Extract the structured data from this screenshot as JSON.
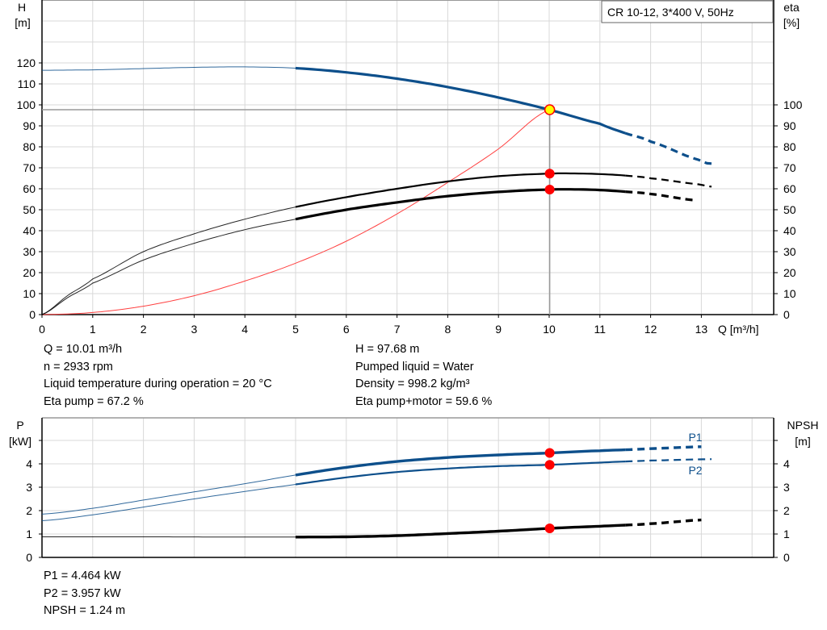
{
  "title_box": "CR 10-12, 3*400 V, 50Hz",
  "colors": {
    "head": "#0d4f8b",
    "power": "#0d4f8b",
    "efficiency": "#000000",
    "npsh": "#000000",
    "system_curve": "#ff4040",
    "duty_point": "#ff0000",
    "duty_point_head_fill": "#ffff00",
    "grid": "#d8d8d8"
  },
  "info_left": [
    "Q = 10.01 m³/h",
    "n = 2933 rpm",
    "Liquid temperature during operation = 20 °C",
    "Eta pump = 67.2 %"
  ],
  "info_right": [
    "H = 97.68 m",
    "Pumped liquid = Water",
    "Density = 998.2 kg/m³",
    "Eta pump+motor = 59.6 %"
  ],
  "info_bottom": [
    "P1 = 4.464 kW",
    "P2 = 3.957 kW",
    "NPSH = 1.24 m"
  ],
  "chart_data": [
    {
      "type": "line",
      "xlabel": "Q [m³/h]",
      "ylabel_left": [
        "H",
        "[m]"
      ],
      "ylabel_right": [
        "eta",
        "[%]"
      ],
      "xlim": [
        0,
        14.4
      ],
      "ylim_left": [
        0,
        150
      ],
      "ylim_right": [
        0,
        150
      ],
      "xticks": [
        0,
        1,
        2,
        3,
        4,
        5,
        6,
        7,
        8,
        9,
        10,
        11,
        12,
        13
      ],
      "yticks_left": [
        0,
        10,
        20,
        30,
        40,
        50,
        60,
        70,
        80,
        90,
        100,
        110,
        120
      ],
      "yticks_right": [
        0,
        10,
        20,
        30,
        40,
        50,
        60,
        70,
        80,
        90,
        100
      ],
      "grid": true,
      "duty_point": {
        "Q": 10.01,
        "H": 97.68,
        "eta_pump": 67.2,
        "eta_pump_motor": 59.6
      },
      "series": [
        {
          "key": "head",
          "axis": "left",
          "x": [
            0,
            1,
            2,
            3,
            4,
            5,
            6,
            7,
            8,
            9,
            10,
            11,
            11.5,
            12,
            13,
            13.2
          ],
          "y": [
            116.5,
            116.7,
            117.3,
            117.9,
            118.1,
            117.5,
            115.5,
            112.5,
            108.5,
            103.5,
            97.7,
            91,
            86.5,
            82.5,
            73.5,
            72
          ]
        },
        {
          "key": "eta_pump",
          "axis": "right",
          "x": [
            0,
            0.5,
            1,
            2,
            3,
            4,
            5,
            6,
            7,
            8,
            9,
            10,
            10.5,
            11,
            11.5,
            12,
            13,
            13.2
          ],
          "y": [
            0,
            9,
            17,
            30,
            38.5,
            45.5,
            51.3,
            56,
            60,
            63.5,
            66,
            67.2,
            67.3,
            67,
            66.3,
            65,
            62,
            61
          ]
        },
        {
          "key": "eta_pump_motor",
          "axis": "right",
          "x": [
            0,
            0.5,
            1,
            2,
            3,
            4,
            5,
            6,
            7,
            8,
            9,
            10,
            10.5,
            11,
            11.5,
            12,
            12.9
          ],
          "y": [
            0,
            8,
            15,
            26,
            34,
            40.5,
            45.5,
            50,
            53.5,
            56.5,
            58.5,
            59.6,
            59.7,
            59.4,
            58.6,
            57.5,
            54.5
          ]
        },
        {
          "key": "system_curve",
          "axis": "left",
          "x": [
            0,
            1,
            2,
            3,
            4,
            5,
            6,
            7,
            8,
            9,
            10
          ],
          "y": [
            0,
            1,
            4,
            9,
            16,
            24.5,
            35,
            48,
            63,
            79,
            97.7
          ]
        }
      ]
    },
    {
      "type": "line",
      "ylabel_left": [
        "P",
        "[kW]"
      ],
      "ylabel_right": [
        "NPSH",
        "[m]"
      ],
      "xlim": [
        0,
        14.4
      ],
      "ylim": [
        0,
        5.95
      ],
      "yticks_left": [
        0,
        1,
        2,
        3,
        4
      ],
      "yticks_right": [
        0,
        1,
        2,
        3,
        4
      ],
      "extra_tick": 5,
      "grid": true,
      "duty_point": {
        "P1": 4.464,
        "P2": 3.957,
        "NPSH": 1.24
      },
      "series": [
        {
          "key": "p1",
          "name": "P1",
          "x": [
            0,
            1,
            2,
            3,
            4,
            5,
            6,
            7,
            8,
            9,
            10,
            11,
            11.5,
            12,
            13
          ],
          "y": [
            1.85,
            2.1,
            2.45,
            2.8,
            3.15,
            3.52,
            3.85,
            4.1,
            4.27,
            4.38,
            4.464,
            4.56,
            4.6,
            4.65,
            4.73
          ]
        },
        {
          "key": "p2",
          "name": "P2",
          "x": [
            0,
            1,
            2,
            3,
            4,
            5,
            6,
            7,
            8,
            9,
            10,
            11,
            11.5,
            12,
            13.2
          ],
          "y": [
            1.57,
            1.82,
            2.15,
            2.5,
            2.82,
            3.12,
            3.42,
            3.65,
            3.8,
            3.9,
            3.957,
            4.05,
            4.1,
            4.14,
            4.2
          ]
        },
        {
          "key": "npsh",
          "x": [
            0,
            1,
            2,
            3,
            4,
            5,
            6,
            7,
            8,
            9,
            10,
            11,
            11.5,
            12,
            13
          ],
          "y": [
            0.88,
            0.88,
            0.88,
            0.875,
            0.87,
            0.87,
            0.88,
            0.93,
            1.02,
            1.12,
            1.24,
            1.33,
            1.38,
            1.44,
            1.6
          ]
        }
      ]
    }
  ]
}
